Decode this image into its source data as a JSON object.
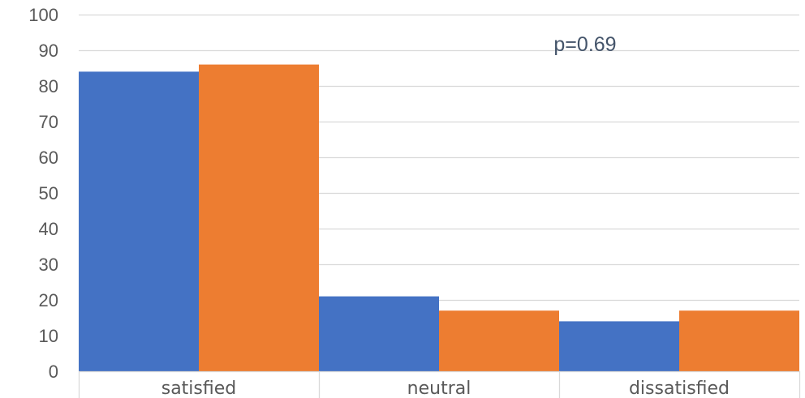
{
  "chart_data": {
    "type": "bar",
    "categories": [
      "satisfied",
      "neutral",
      "dissatisfied"
    ],
    "series": [
      {
        "values": [
          84,
          21,
          14
        ],
        "color": "#4472c4"
      },
      {
        "values": [
          86,
          17,
          17
        ],
        "color": "#ed7d31"
      }
    ],
    "ylim": [
      0,
      100
    ],
    "yticks": [
      0,
      10,
      20,
      30,
      40,
      50,
      60,
      70,
      80,
      90,
      100
    ],
    "grid": true,
    "legend": "none",
    "annotation": "p=0.69",
    "gridline_color": "#d9d9d9",
    "tick_color": "#595959"
  }
}
